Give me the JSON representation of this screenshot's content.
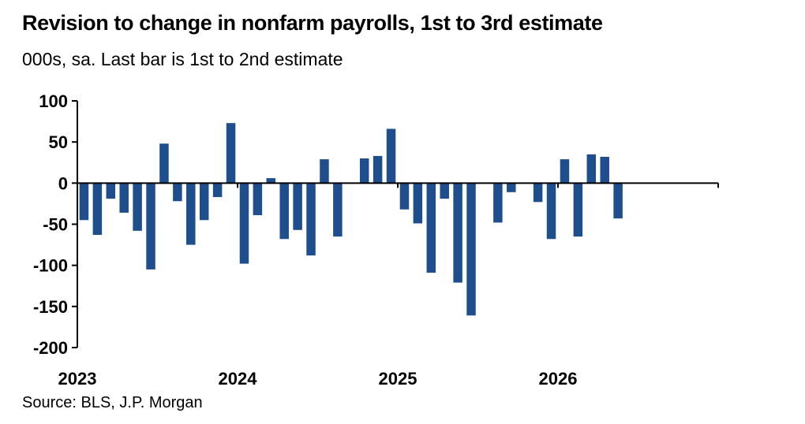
{
  "title": "Revision to change in nonfarm payrolls, 1st to 3rd estimate",
  "subtitle": "000s, sa. Last bar is 1st to 2nd estimate",
  "source": "Source: BLS, J.P. Morgan",
  "colors": {
    "bar": "#1f4e8c",
    "axis": "#000000"
  },
  "chart_data": {
    "type": "bar",
    "title": "Revision to change in nonfarm payrolls, 1st to 3rd estimate",
    "subtitle": "000s, sa. Last bar is 1st to 2nd estimate",
    "ylim": [
      -200,
      100
    ],
    "yticks": [
      "100",
      "50",
      "0",
      "-50",
      "-100",
      "-150",
      "-200"
    ],
    "xtick_labels": [
      "2023",
      "2024",
      "2025",
      "2026"
    ],
    "categories": [
      "2023-01",
      "2023-02",
      "2023-03",
      "2023-04",
      "2023-05",
      "2023-06",
      "2023-07",
      "2023-08",
      "2023-09",
      "2023-10",
      "2023-11",
      "2023-12",
      "2024-01",
      "2024-02",
      "2024-03",
      "2024-04",
      "2024-05",
      "2024-06",
      "2024-07",
      "2024-08",
      "2024-09",
      "2024-10",
      "2024-11",
      "2024-12",
      "2025-01",
      "2025-02",
      "2025-03",
      "2025-04",
      "2025-05",
      "2025-06",
      "2025-07",
      "2025-08",
      "2025-09",
      "2025-10",
      "2025-11",
      "2025-12",
      "2026-01",
      "2026-02",
      "2026-03",
      "2026-04",
      "2026-05",
      "2026-06",
      "2026-07",
      "2026-08",
      "2026-09",
      "2026-10",
      "2026-11",
      "2026-12"
    ],
    "values": [
      -45,
      -63,
      -19,
      -36,
      -58,
      -105,
      48,
      -22,
      -75,
      -45,
      -17,
      73,
      -98,
      -39,
      6,
      -68,
      -57,
      -88,
      29,
      -65,
      null,
      30,
      33,
      66,
      -32,
      -49,
      -109,
      -19,
      -121,
      -161,
      null,
      -48,
      -11,
      null,
      -23,
      -68,
      29,
      -65,
      35,
      32,
      -43,
      null,
      null,
      null,
      null,
      null,
      null,
      null
    ]
  }
}
